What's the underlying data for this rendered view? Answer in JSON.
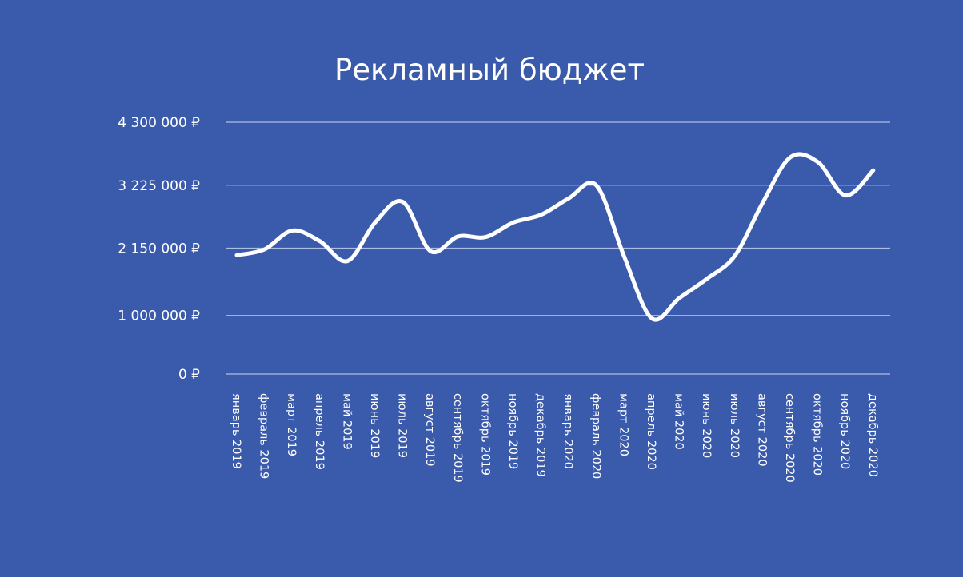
{
  "colors": {
    "background": "#3a5aab",
    "line": "#ffffff",
    "grid": "#aebde3",
    "text": "#ffffff"
  },
  "chart_data": {
    "type": "line",
    "title": "Рекламный бюджет",
    "xlabel": "",
    "ylabel": "",
    "ylim": [
      0,
      4300000
    ],
    "yticks": [
      0,
      1000000,
      2150000,
      3225000,
      4300000
    ],
    "ytick_labels": [
      "0 ₽",
      "1 000 000 ₽",
      "2 150 000 ₽",
      "3 225 000 ₽",
      "4 300 000 ₽"
    ],
    "grid": true,
    "legend": "none",
    "categories": [
      "январь 2019",
      "февраль 2019",
      "март 2019",
      "апрель 2019",
      "май 2019",
      "июнь 2019",
      "июль 2019",
      "август 2019",
      "сентябрь 2019",
      "октябрь 2019",
      "ноябрь 2019",
      "декабрь 2019",
      "январь 2020",
      "февраль 2020",
      "март  2020",
      "апрель  2020",
      "май  2020",
      "июнь  2020",
      "июль  2020",
      "август  2020",
      "сентябрь  2020",
      "октябрь  2020",
      "ноябрь  2020",
      "декабрь  2020"
    ],
    "series": [
      {
        "values": [
          2030000,
          2130000,
          2450000,
          2270000,
          1930000,
          2590000,
          2940000,
          2100000,
          2350000,
          2340000,
          2590000,
          2720000,
          3000000,
          3220000,
          2010000,
          950000,
          1300000,
          1630000,
          2020000,
          2920000,
          3700000,
          3620000,
          3050000,
          3480000
        ]
      }
    ]
  }
}
